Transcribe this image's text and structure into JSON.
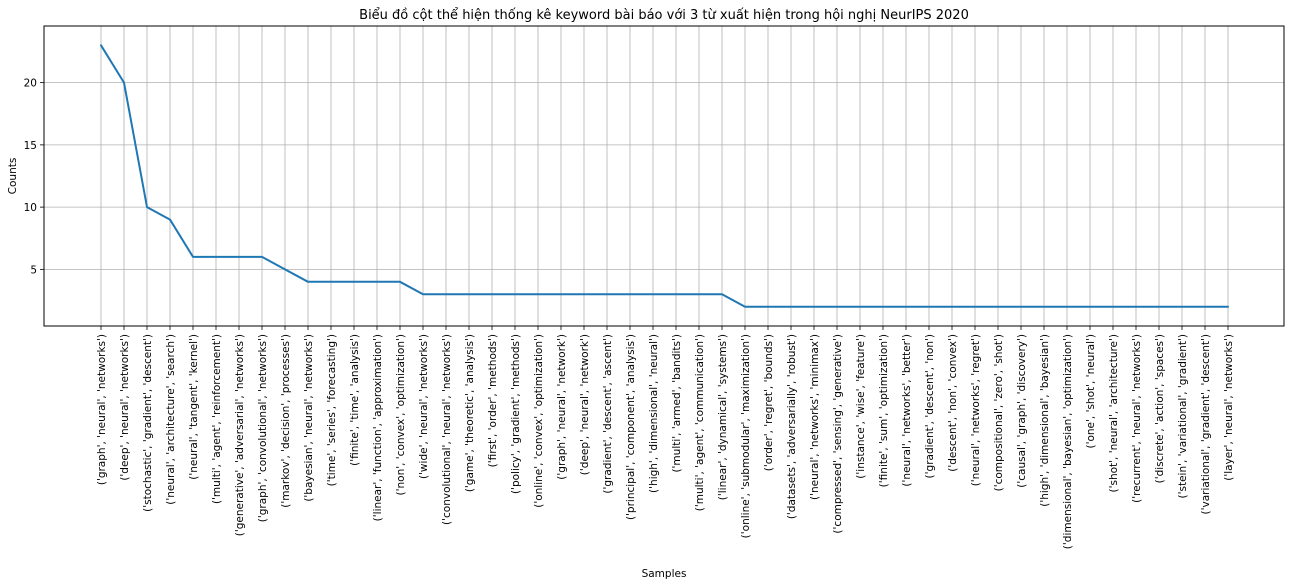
{
  "chart_data": {
    "type": "line",
    "title": "Biểu đồ cột thể hiện thống kê keyword bài báo với 3 từ xuất hiện trong hội nghị NeurIPS 2020",
    "xlabel": "Samples",
    "ylabel": "Counts",
    "ylim": [
      0.45,
      24.55
    ],
    "yticks": [
      5,
      10,
      15,
      20
    ],
    "grid": true,
    "categories": [
      "('graph', 'neural', 'networks')",
      "('deep', 'neural', 'networks')",
      "('stochastic', 'gradient', 'descent')",
      "('neural', 'architecture', 'search')",
      "('neural', 'tangent', 'kernel')",
      "('multi', 'agent', 'reinforcement')",
      "('generative', 'adversarial', 'networks')",
      "('graph', 'convolutional', 'networks')",
      "('markov', 'decision', 'processes')",
      "('bayesian', 'neural', 'networks')",
      "('time', 'series', 'forecasting')",
      "('finite', 'time', 'analysis')",
      "('linear', 'function', 'approximation')",
      "('non', 'convex', 'optimization')",
      "('wide', 'neural', 'networks')",
      "('convolutional', 'neural', 'networks')",
      "('game', 'theoretic', 'analysis')",
      "('first', 'order', 'methods')",
      "('policy', 'gradient', 'methods')",
      "('online', 'convex', 'optimization')",
      "('graph', 'neural', 'network')",
      "('deep', 'neural', 'network')",
      "('gradient', 'descent', 'ascent')",
      "('principal', 'component', 'analysis')",
      "('high', 'dimensional', 'neural')",
      "('multi', 'armed', 'bandits')",
      "('multi', 'agent', 'communication')",
      "('linear', 'dynamical', 'systems')",
      "('online', 'submodular', 'maximization')",
      "('order', 'regret', 'bounds')",
      "('datasets', 'adversarially', 'robust')",
      "('neural', 'networks', 'minimax')",
      "('compressed', 'sensing', 'generative')",
      "('instance', 'wise', 'feature')",
      "('finite', 'sum', 'optimization')",
      "('neural', 'networks', 'better')",
      "('gradient', 'descent', 'non')",
      "('descent', 'non', 'convex')",
      "('neural', 'networks', 'regret')",
      "('compositional', 'zero', 'shot')",
      "('causal', 'graph', 'discovery')",
      "('high', 'dimensional', 'bayesian')",
      "('dimensional', 'bayesian', 'optimization')",
      "('one', 'shot', 'neural')",
      "('shot', 'neural', 'architecture')",
      "('recurrent', 'neural', 'networks')",
      "('discrete', 'action', 'spaces')",
      "('stein', 'variational', 'gradient')",
      "('variational', 'gradient', 'descent')",
      "('layer', 'neural', 'networks')"
    ],
    "values": [
      23,
      20,
      10,
      9,
      6,
      6,
      6,
      6,
      5,
      4,
      4,
      4,
      4,
      4,
      3,
      3,
      3,
      3,
      3,
      3,
      3,
      3,
      3,
      3,
      3,
      3,
      3,
      3,
      2,
      2,
      2,
      2,
      2,
      2,
      2,
      2,
      2,
      2,
      2,
      2,
      2,
      2,
      2,
      2,
      2,
      2,
      2,
      2,
      2,
      2
    ],
    "line_color": "#1f77b4"
  }
}
